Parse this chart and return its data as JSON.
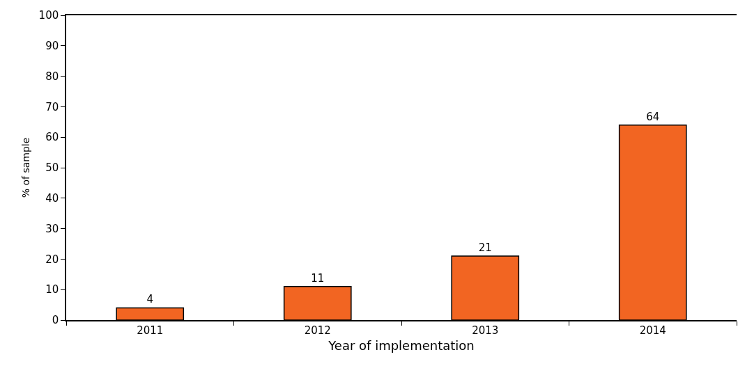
{
  "chart_data": {
    "type": "bar",
    "xlabel": "Year of implementation",
    "ylabel": "% of sample",
    "categories": [
      "2011",
      "2012",
      "2013",
      "2014"
    ],
    "values": [
      4,
      11,
      21,
      64
    ],
    "color": "#f26522",
    "ylim": [
      0,
      100
    ],
    "yticks": [
      0,
      10,
      20,
      30,
      40,
      50,
      60,
      70,
      80,
      90,
      100
    ],
    "data_labels": true
  }
}
